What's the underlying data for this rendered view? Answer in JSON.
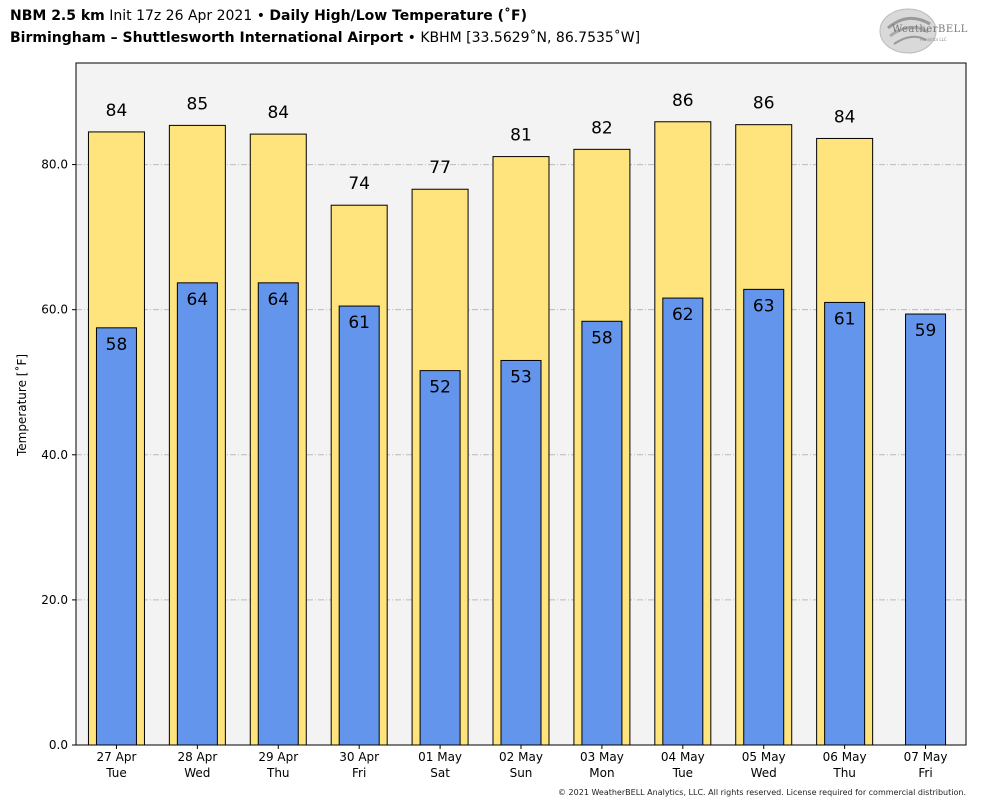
{
  "header": {
    "line1_model": "NBM 2.5 km",
    "line1_init": "Init 17z 26 Apr 2021",
    "line1_sep": "•",
    "line1_title": "Daily High/Low Temperature (˚F)",
    "line2_station": "Birmingham – Shuttlesworth International Airport",
    "line2_sep": "•",
    "line2_coords": "KBHM [33.5629˚N, 86.7535˚W]"
  },
  "logo": {
    "text": "WeatherBELL",
    "sub": "Analytics LLC"
  },
  "footer": "© 2021 WeatherBELL Analytics, LLC. All rights reserved. License required for commercial distribution.",
  "colors": {
    "high": "#FFE47D",
    "low": "#6495ED",
    "plot_bg": "#F3F3F3",
    "grid": "#BBBBBB"
  },
  "chart_data": {
    "type": "bar",
    "ylabel": "Temperature [˚F]",
    "ylim": [
      0,
      94
    ],
    "yticks": [
      "0.0",
      "20.0",
      "40.0",
      "60.0",
      "80.0"
    ],
    "ytick_values": [
      0,
      20,
      40,
      60,
      80
    ],
    "grid": true,
    "categories": [
      [
        "27 Apr",
        "Tue"
      ],
      [
        "28 Apr",
        "Wed"
      ],
      [
        "29 Apr",
        "Thu"
      ],
      [
        "30 Apr",
        "Fri"
      ],
      [
        "01 May",
        "Sat"
      ],
      [
        "02 May",
        "Sun"
      ],
      [
        "03 May",
        "Mon"
      ],
      [
        "04 May",
        "Tue"
      ],
      [
        "05 May",
        "Wed"
      ],
      [
        "06 May",
        "Thu"
      ],
      [
        "07 May",
        "Fri"
      ]
    ],
    "series": [
      {
        "name": "High",
        "values": [
          84.5,
          85.4,
          84.2,
          74.4,
          76.6,
          81.1,
          82.1,
          85.9,
          85.5,
          83.6,
          null
        ],
        "labels": [
          "84",
          "85",
          "84",
          "74",
          "77",
          "81",
          "82",
          "86",
          "86",
          "84",
          ""
        ]
      },
      {
        "name": "Low",
        "values": [
          57.5,
          63.7,
          63.7,
          60.5,
          51.6,
          53.0,
          58.4,
          61.6,
          62.8,
          61.0,
          59.4
        ],
        "labels": [
          "58",
          "64",
          "64",
          "61",
          "52",
          "53",
          "58",
          "62",
          "63",
          "61",
          "59"
        ]
      }
    ]
  }
}
